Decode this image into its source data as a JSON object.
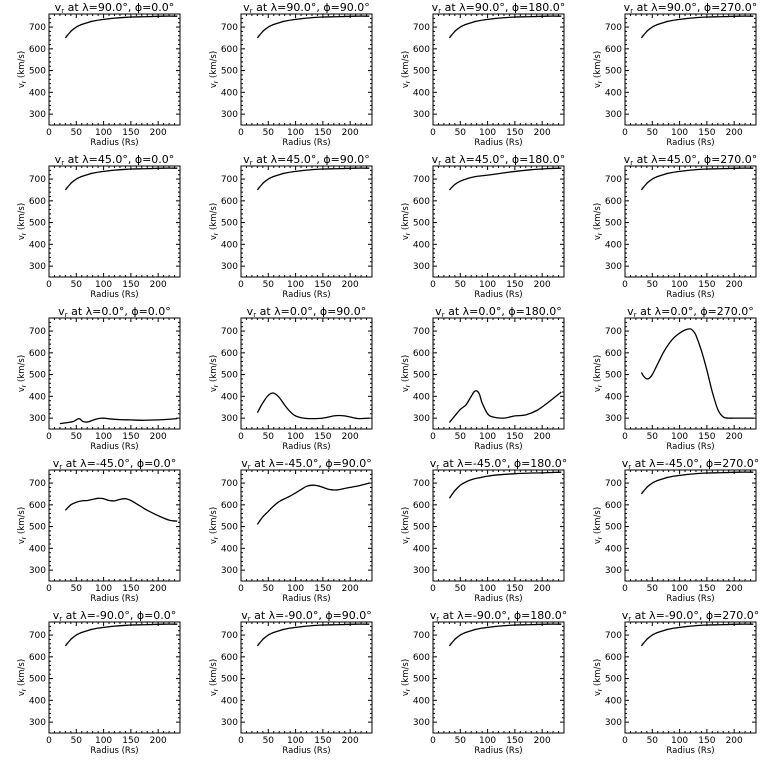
{
  "figure": {
    "xlabel": "Radius (Rs)",
    "ylabel": "v",
    "ylabel_sub": "r",
    "ylabel_unit": " (km/s)",
    "title_prefix": "v",
    "title_prefix_sub": "r",
    "title_at": " at λ=",
    "title_phi": "°, ϕ=",
    "title_deg": "°"
  },
  "chart_data": [
    {
      "type": "line",
      "lambda": "90.0",
      "phi": "0.0",
      "xlim": [
        0,
        240
      ],
      "ylim": [
        250,
        760
      ],
      "xticks": [
        0,
        50,
        100,
        150,
        200
      ],
      "yticks": [
        300,
        400,
        500,
        600,
        700
      ],
      "x": [
        30,
        40,
        50,
        60,
        70,
        80,
        100,
        120,
        150,
        180,
        210,
        235
      ],
      "y": [
        650,
        680,
        700,
        712,
        720,
        727,
        735,
        741,
        746,
        748,
        750,
        750
      ]
    },
    {
      "type": "line",
      "lambda": "90.0",
      "phi": "90.0",
      "xlim": [
        0,
        240
      ],
      "ylim": [
        250,
        760
      ],
      "xticks": [
        0,
        50,
        100,
        150,
        200
      ],
      "yticks": [
        300,
        400,
        500,
        600,
        700
      ],
      "x": [
        30,
        40,
        50,
        60,
        70,
        80,
        100,
        120,
        150,
        180,
        210,
        235
      ],
      "y": [
        650,
        680,
        700,
        712,
        720,
        727,
        735,
        741,
        746,
        748,
        750,
        750
      ]
    },
    {
      "type": "line",
      "lambda": "90.0",
      "phi": "180.0",
      "xlim": [
        0,
        240
      ],
      "ylim": [
        250,
        760
      ],
      "xticks": [
        0,
        50,
        100,
        150,
        200
      ],
      "yticks": [
        300,
        400,
        500,
        600,
        700
      ],
      "x": [
        30,
        40,
        50,
        60,
        70,
        80,
        100,
        120,
        150,
        180,
        210,
        235
      ],
      "y": [
        650,
        680,
        700,
        712,
        720,
        727,
        735,
        741,
        746,
        748,
        750,
        750
      ]
    },
    {
      "type": "line",
      "lambda": "90.0",
      "phi": "270.0",
      "xlim": [
        0,
        240
      ],
      "ylim": [
        250,
        760
      ],
      "xticks": [
        0,
        50,
        100,
        150,
        200
      ],
      "yticks": [
        300,
        400,
        500,
        600,
        700
      ],
      "x": [
        30,
        40,
        50,
        60,
        70,
        80,
        100,
        120,
        150,
        180,
        210,
        235
      ],
      "y": [
        650,
        680,
        700,
        712,
        720,
        727,
        735,
        741,
        746,
        748,
        750,
        750
      ]
    },
    {
      "type": "line",
      "lambda": "45.0",
      "phi": "0.0",
      "xlim": [
        0,
        240
      ],
      "ylim": [
        250,
        760
      ],
      "xticks": [
        0,
        50,
        100,
        150,
        200
      ],
      "yticks": [
        300,
        400,
        500,
        600,
        700
      ],
      "x": [
        30,
        40,
        50,
        60,
        70,
        80,
        100,
        120,
        150,
        180,
        210,
        235
      ],
      "y": [
        650,
        680,
        700,
        712,
        720,
        727,
        735,
        741,
        746,
        748,
        750,
        750
      ]
    },
    {
      "type": "line",
      "lambda": "45.0",
      "phi": "90.0",
      "xlim": [
        0,
        240
      ],
      "ylim": [
        250,
        760
      ],
      "xticks": [
        0,
        50,
        100,
        150,
        200
      ],
      "yticks": [
        300,
        400,
        500,
        600,
        700
      ],
      "x": [
        30,
        40,
        50,
        60,
        70,
        80,
        100,
        120,
        150,
        180,
        210,
        235
      ],
      "y": [
        650,
        680,
        700,
        712,
        720,
        727,
        735,
        741,
        746,
        748,
        750,
        750
      ]
    },
    {
      "type": "line",
      "lambda": "45.0",
      "phi": "180.0",
      "xlim": [
        0,
        240
      ],
      "ylim": [
        250,
        760
      ],
      "xticks": [
        0,
        50,
        100,
        150,
        200
      ],
      "yticks": [
        300,
        400,
        500,
        600,
        700
      ],
      "x": [
        30,
        40,
        50,
        60,
        70,
        80,
        100,
        120,
        140,
        160,
        180,
        210,
        235
      ],
      "y": [
        650,
        675,
        690,
        700,
        707,
        712,
        718,
        725,
        732,
        738,
        743,
        748,
        750
      ]
    },
    {
      "type": "line",
      "lambda": "45.0",
      "phi": "270.0",
      "xlim": [
        0,
        240
      ],
      "ylim": [
        250,
        760
      ],
      "xticks": [
        0,
        50,
        100,
        150,
        200
      ],
      "yticks": [
        300,
        400,
        500,
        600,
        700
      ],
      "x": [
        30,
        40,
        50,
        60,
        70,
        80,
        100,
        120,
        150,
        180,
        210,
        235
      ],
      "y": [
        650,
        680,
        700,
        712,
        720,
        727,
        735,
        741,
        746,
        748,
        750,
        750
      ]
    },
    {
      "type": "line",
      "lambda": "0.0",
      "phi": "0.0",
      "xlim": [
        0,
        240
      ],
      "ylim": [
        250,
        760
      ],
      "xticks": [
        0,
        50,
        100,
        150,
        200
      ],
      "yticks": [
        300,
        400,
        500,
        600,
        700
      ],
      "x": [
        20,
        35,
        45,
        55,
        62,
        70,
        80,
        90,
        100,
        110,
        130,
        150,
        170,
        200,
        235
      ],
      "y": [
        275,
        280,
        285,
        298,
        285,
        282,
        290,
        298,
        300,
        297,
        293,
        292,
        290,
        292,
        298
      ]
    },
    {
      "type": "line",
      "lambda": "0.0",
      "phi": "90.0",
      "xlim": [
        0,
        240
      ],
      "ylim": [
        250,
        760
      ],
      "xticks": [
        0,
        50,
        100,
        150,
        200
      ],
      "yticks": [
        300,
        400,
        500,
        600,
        700
      ],
      "x": [
        30,
        40,
        50,
        60,
        70,
        80,
        90,
        100,
        115,
        130,
        150,
        170,
        180,
        190,
        200,
        215,
        235
      ],
      "y": [
        325,
        370,
        405,
        415,
        395,
        360,
        330,
        310,
        300,
        298,
        300,
        310,
        312,
        310,
        305,
        298,
        300
      ]
    },
    {
      "type": "line",
      "lambda": "0.0",
      "phi": "180.0",
      "xlim": [
        0,
        240
      ],
      "ylim": [
        250,
        760
      ],
      "xticks": [
        0,
        50,
        100,
        150,
        200
      ],
      "yticks": [
        300,
        400,
        500,
        600,
        700
      ],
      "x": [
        30,
        40,
        50,
        60,
        70,
        75,
        80,
        85,
        90,
        100,
        110,
        130,
        150,
        170,
        190,
        210,
        235
      ],
      "y": [
        280,
        310,
        340,
        360,
        400,
        420,
        425,
        410,
        370,
        320,
        305,
        300,
        310,
        315,
        335,
        370,
        420
      ]
    },
    {
      "type": "line",
      "lambda": "0.0",
      "phi": "270.0",
      "xlim": [
        0,
        240
      ],
      "ylim": [
        250,
        760
      ],
      "xticks": [
        0,
        50,
        100,
        150,
        200
      ],
      "yticks": [
        300,
        400,
        500,
        600,
        700
      ],
      "x": [
        30,
        35,
        42,
        50,
        60,
        70,
        80,
        90,
        100,
        110,
        120,
        125,
        130,
        140,
        150,
        160,
        170,
        180,
        190,
        200,
        235
      ],
      "y": [
        510,
        490,
        480,
        500,
        550,
        600,
        640,
        670,
        690,
        705,
        710,
        700,
        680,
        610,
        520,
        420,
        340,
        305,
        300,
        300,
        300
      ]
    },
    {
      "type": "line",
      "lambda": "-45.0",
      "phi": "0.0",
      "xlim": [
        0,
        240
      ],
      "ylim": [
        250,
        760
      ],
      "xticks": [
        0,
        50,
        100,
        150,
        200
      ],
      "yticks": [
        300,
        400,
        500,
        600,
        700
      ],
      "x": [
        30,
        40,
        50,
        60,
        70,
        80,
        90,
        100,
        110,
        120,
        130,
        140,
        150,
        160,
        170,
        180,
        200,
        220,
        235
      ],
      "y": [
        575,
        600,
        612,
        618,
        620,
        625,
        630,
        628,
        620,
        618,
        625,
        628,
        620,
        605,
        590,
        575,
        550,
        530,
        525
      ]
    },
    {
      "type": "line",
      "lambda": "-45.0",
      "phi": "90.0",
      "xlim": [
        0,
        240
      ],
      "ylim": [
        250,
        760
      ],
      "xticks": [
        0,
        50,
        100,
        150,
        200
      ],
      "yticks": [
        300,
        400,
        500,
        600,
        700
      ],
      "x": [
        30,
        40,
        50,
        60,
        70,
        80,
        90,
        100,
        110,
        120,
        130,
        140,
        150,
        160,
        170,
        180,
        200,
        220,
        235
      ],
      "y": [
        510,
        545,
        570,
        595,
        615,
        628,
        640,
        655,
        670,
        685,
        690,
        688,
        680,
        672,
        668,
        670,
        680,
        690,
        700
      ]
    },
    {
      "type": "line",
      "lambda": "-45.0",
      "phi": "180.0",
      "xlim": [
        0,
        240
      ],
      "ylim": [
        250,
        760
      ],
      "xticks": [
        0,
        50,
        100,
        150,
        200
      ],
      "yticks": [
        300,
        400,
        500,
        600,
        700
      ],
      "x": [
        30,
        40,
        50,
        60,
        70,
        80,
        100,
        120,
        150,
        180,
        210,
        235
      ],
      "y": [
        630,
        665,
        690,
        705,
        715,
        722,
        732,
        738,
        743,
        746,
        748,
        750
      ]
    },
    {
      "type": "line",
      "lambda": "-45.0",
      "phi": "270.0",
      "xlim": [
        0,
        240
      ],
      "ylim": [
        250,
        760
      ],
      "xticks": [
        0,
        50,
        100,
        150,
        200
      ],
      "yticks": [
        300,
        400,
        500,
        600,
        700
      ],
      "x": [
        30,
        40,
        50,
        60,
        70,
        80,
        100,
        120,
        150,
        180,
        210,
        235
      ],
      "y": [
        650,
        680,
        700,
        712,
        720,
        727,
        735,
        741,
        746,
        748,
        750,
        750
      ]
    },
    {
      "type": "line",
      "lambda": "-90.0",
      "phi": "0.0",
      "xlim": [
        0,
        240
      ],
      "ylim": [
        250,
        760
      ],
      "xticks": [
        0,
        50,
        100,
        150,
        200
      ],
      "yticks": [
        300,
        400,
        500,
        600,
        700
      ],
      "x": [
        30,
        40,
        50,
        60,
        70,
        80,
        100,
        120,
        150,
        180,
        210,
        235
      ],
      "y": [
        650,
        680,
        700,
        712,
        720,
        727,
        735,
        741,
        746,
        748,
        750,
        750
      ]
    },
    {
      "type": "line",
      "lambda": "-90.0",
      "phi": "90.0",
      "xlim": [
        0,
        240
      ],
      "ylim": [
        250,
        760
      ],
      "xticks": [
        0,
        50,
        100,
        150,
        200
      ],
      "yticks": [
        300,
        400,
        500,
        600,
        700
      ],
      "x": [
        30,
        40,
        50,
        60,
        70,
        80,
        100,
        120,
        150,
        180,
        210,
        235
      ],
      "y": [
        650,
        680,
        700,
        712,
        720,
        727,
        735,
        741,
        746,
        748,
        750,
        750
      ]
    },
    {
      "type": "line",
      "lambda": "-90.0",
      "phi": "180.0",
      "xlim": [
        0,
        240
      ],
      "ylim": [
        250,
        760
      ],
      "xticks": [
        0,
        50,
        100,
        150,
        200
      ],
      "yticks": [
        300,
        400,
        500,
        600,
        700
      ],
      "x": [
        30,
        40,
        50,
        60,
        70,
        80,
        100,
        120,
        150,
        180,
        210,
        235
      ],
      "y": [
        650,
        680,
        700,
        712,
        720,
        727,
        735,
        741,
        746,
        748,
        750,
        750
      ]
    },
    {
      "type": "line",
      "lambda": "-90.0",
      "phi": "270.0",
      "xlim": [
        0,
        240
      ],
      "ylim": [
        250,
        760
      ],
      "xticks": [
        0,
        50,
        100,
        150,
        200
      ],
      "yticks": [
        300,
        400,
        500,
        600,
        700
      ],
      "x": [
        30,
        40,
        50,
        60,
        70,
        80,
        100,
        120,
        150,
        180,
        210,
        235
      ],
      "y": [
        650,
        680,
        700,
        712,
        720,
        727,
        735,
        741,
        746,
        748,
        750,
        750
      ]
    }
  ]
}
